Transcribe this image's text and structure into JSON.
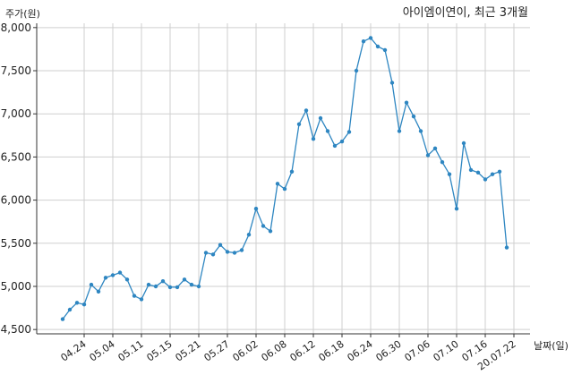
{
  "chart_data": {
    "type": "line",
    "title": "아이엠이연이, 최근 3개월",
    "xlabel": "날짜(일)",
    "ylabel": "주가(원)",
    "ylim": [
      4450,
      8050
    ],
    "yticks": [
      4500,
      5000,
      5500,
      6000,
      6500,
      7000,
      7500,
      8000
    ],
    "ytick_labels": [
      "4,500",
      "5,000",
      "5,500",
      "6,000",
      "6,500",
      "7,000",
      "7,500",
      "8,000"
    ],
    "xtick_labels": [
      "04.24",
      "05.04",
      "05.11",
      "05.15",
      "05.21",
      "05.27",
      "06.02",
      "06.08",
      "06.12",
      "06.18",
      "06.24",
      "06.30",
      "07.06",
      "07.10",
      "07.16",
      "20.07.22"
    ],
    "xtick_index": [
      3,
      7,
      11,
      15,
      19,
      23,
      27,
      31,
      35,
      39,
      43,
      47,
      51,
      55,
      59,
      63
    ],
    "grid": true,
    "color": "#2e86c1",
    "series": [
      {
        "values": [
          4620,
          4730,
          4810,
          4790,
          5020,
          4940,
          5100,
          5130,
          5160,
          5080,
          4890,
          4850,
          5020,
          5000,
          5060,
          4990,
          4990,
          5080,
          5020,
          5000,
          5390,
          5370,
          5480,
          5400,
          5390,
          5420,
          5600,
          5900,
          5700,
          5640,
          6190,
          6130,
          6330,
          6880,
          7040,
          6710,
          6950,
          6800,
          6630,
          6680,
          6790,
          7500,
          7840,
          7880,
          7780,
          7740,
          7360,
          6800,
          7130,
          6970,
          6800,
          6520,
          6600,
          6440,
          6300,
          5900,
          6660,
          6350,
          6320,
          6240,
          6300,
          6330,
          5450
        ]
      }
    ]
  }
}
